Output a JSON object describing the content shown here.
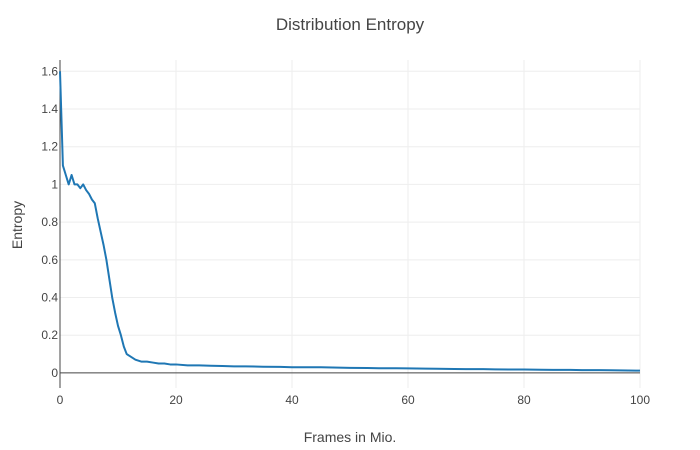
{
  "chart_data": {
    "type": "line",
    "title": "Distribution Entropy",
    "xlabel": "Frames in Mio.",
    "ylabel": "Entropy",
    "xlim": [
      0,
      100
    ],
    "ylim": [
      -0.08,
      1.66
    ],
    "x_ticks": [
      0,
      20,
      40,
      60,
      80,
      100
    ],
    "y_ticks": [
      0,
      0.2,
      0.4,
      0.6,
      0.8,
      1,
      1.2,
      1.4,
      1.6
    ],
    "x_tick_labels": [
      "0",
      "20",
      "40",
      "60",
      "80",
      "100"
    ],
    "y_tick_labels": [
      "0",
      "0.2",
      "0.4",
      "0.6",
      "0.8",
      "1",
      "1.2",
      "1.4",
      "1.6"
    ],
    "grid": true,
    "series": [
      {
        "color": "#1f77b4",
        "x": [
          0,
          0.2,
          0.5,
          1,
          1.5,
          2,
          2.5,
          3,
          3.5,
          4,
          4.5,
          5,
          5.5,
          6,
          6.5,
          7,
          7.5,
          8,
          8.5,
          9,
          9.5,
          10,
          10.5,
          11,
          11.5,
          12,
          12.5,
          13,
          14,
          15,
          16,
          17,
          18,
          19,
          20,
          22,
          24,
          26,
          28,
          30,
          32,
          35,
          38,
          40,
          42,
          45,
          48,
          50,
          53,
          55,
          58,
          60,
          63,
          65,
          68,
          70,
          73,
          75,
          78,
          80,
          83,
          85,
          88,
          90,
          93,
          95,
          98,
          100
        ],
        "y": [
          1.6,
          1.4,
          1.1,
          1.05,
          1.0,
          1.05,
          1.0,
          1.0,
          0.98,
          1.0,
          0.97,
          0.95,
          0.92,
          0.9,
          0.82,
          0.75,
          0.68,
          0.6,
          0.5,
          0.4,
          0.32,
          0.25,
          0.2,
          0.14,
          0.1,
          0.09,
          0.08,
          0.07,
          0.06,
          0.06,
          0.055,
          0.05,
          0.05,
          0.045,
          0.045,
          0.04,
          0.04,
          0.038,
          0.037,
          0.035,
          0.035,
          0.033,
          0.032,
          0.03,
          0.03,
          0.03,
          0.028,
          0.027,
          0.026,
          0.025,
          0.025,
          0.024,
          0.023,
          0.022,
          0.021,
          0.02,
          0.02,
          0.019,
          0.018,
          0.018,
          0.017,
          0.016,
          0.016,
          0.015,
          0.015,
          0.014,
          0.013,
          0.012
        ]
      }
    ]
  }
}
